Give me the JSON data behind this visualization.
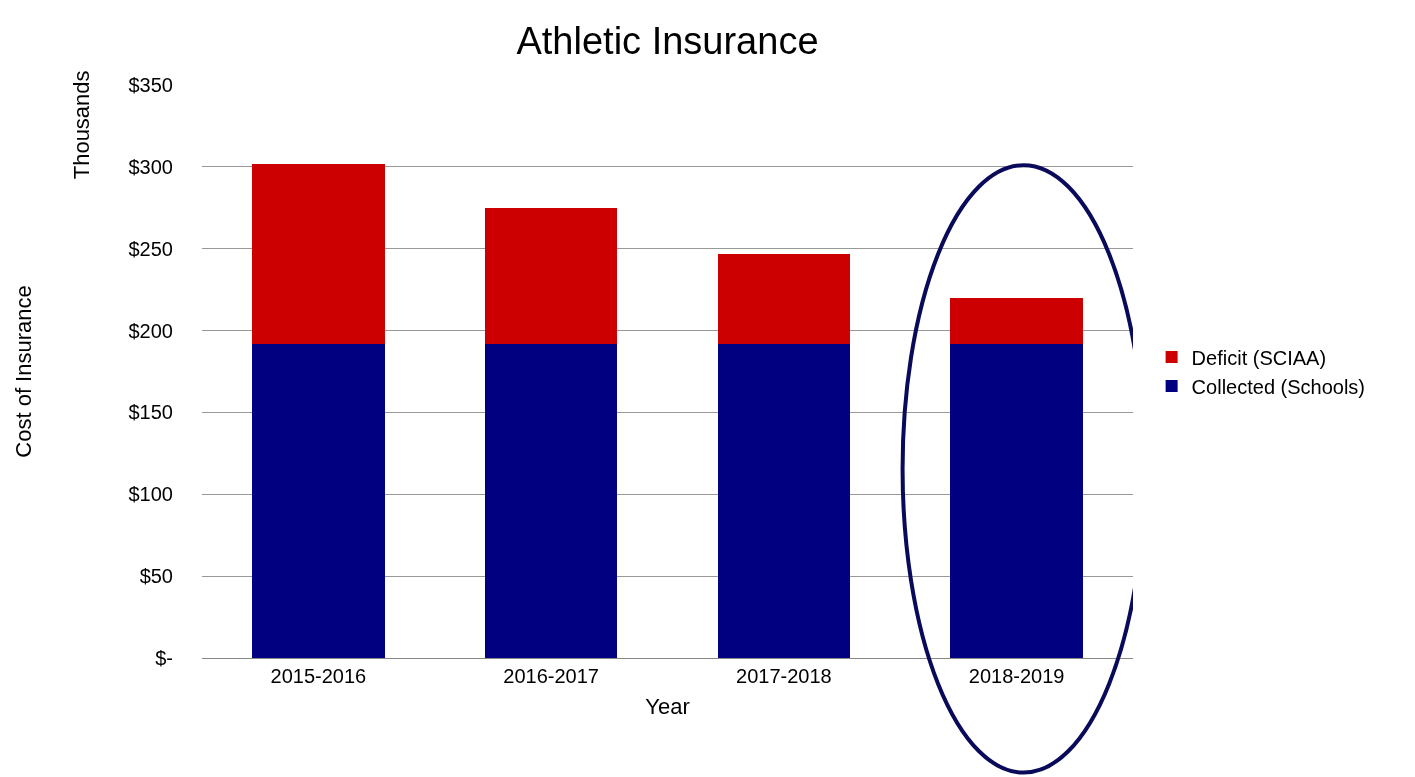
{
  "chart_data": {
    "type": "bar",
    "title": "Athletic Insurance",
    "xlabel": "Year",
    "ylabel": "Cost of Insurance",
    "annotations": [
      "Thousands"
    ],
    "categories": [
      "2015-2016",
      "2016-2017",
      "2017-2018",
      "2018-2019"
    ],
    "stacked": true,
    "series": [
      {
        "name": "Collected (Schools)",
        "color": "#000080",
        "values": [
          192,
          192,
          192,
          192
        ]
      },
      {
        "name": "Deficit (SCIAA)",
        "color": "#cc0000",
        "values": [
          110,
          83,
          55,
          28
        ]
      }
    ],
    "ylim": [
      0,
      350
    ],
    "yticks": [
      {
        "value": 0,
        "label": "$-"
      },
      {
        "value": 50,
        "label": "$50"
      },
      {
        "value": 100,
        "label": "$100"
      },
      {
        "value": 150,
        "label": "$150"
      },
      {
        "value": 200,
        "label": "$200"
      },
      {
        "value": 250,
        "label": "$250"
      },
      {
        "value": 300,
        "label": "$300"
      },
      {
        "value": 350,
        "label": "$350"
      }
    ],
    "grid": "y",
    "legend": "right"
  }
}
